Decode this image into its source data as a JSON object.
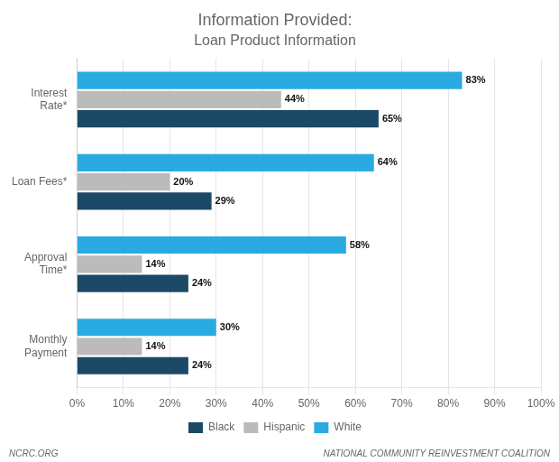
{
  "chart_data": {
    "type": "bar",
    "orientation": "horizontal",
    "title": "Information Provided:",
    "subtitle": "Loan Product Information",
    "categories": [
      "Interest\nRate*",
      "Loan Fees*",
      "Approval\nTime*",
      "Monthly\nPayment"
    ],
    "series": [
      {
        "name": "White",
        "color": "#29ABE2",
        "values": [
          83,
          64,
          58,
          30
        ],
        "value_labels": [
          "83%",
          "64%",
          "58%",
          "30%"
        ]
      },
      {
        "name": "Hispanic",
        "color": "#BBBBBB",
        "values": [
          44,
          20,
          14,
          14
        ],
        "value_labels": [
          "44%",
          "20%",
          "14%",
          "14%"
        ]
      },
      {
        "name": "Black",
        "color": "#1C4966",
        "values": [
          65,
          29,
          24,
          24
        ],
        "value_labels": [
          "65%",
          "29%",
          "24%",
          "24%"
        ]
      }
    ],
    "xlim": [
      0,
      100
    ],
    "xticks": [
      {
        "value": 0,
        "label": "0%"
      },
      {
        "value": 10,
        "label": "10%"
      },
      {
        "value": 20,
        "label": "20%"
      },
      {
        "value": 30,
        "label": "30%"
      },
      {
        "value": 40,
        "label": "40%"
      },
      {
        "value": 50,
        "label": "50%"
      },
      {
        "value": 60,
        "label": "60%"
      },
      {
        "value": 70,
        "label": "70%"
      },
      {
        "value": 80,
        "label": "80%"
      },
      {
        "value": 90,
        "label": "90%"
      },
      {
        "value": 100,
        "label": "100%"
      }
    ],
    "grid": true,
    "legend": "bottom",
    "data_labels": true,
    "annotations": [
      "NCRC.ORG",
      "NATIONAL COMMUNITY REINVESTMENT COALITION"
    ]
  }
}
